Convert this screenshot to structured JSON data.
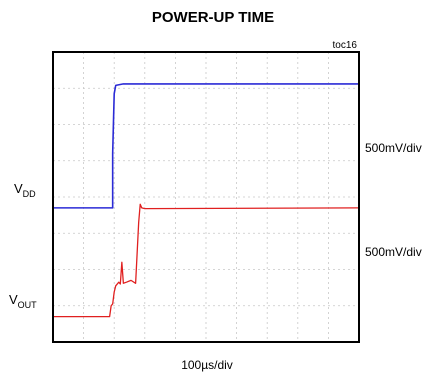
{
  "chart_data": {
    "type": "line",
    "title": "POWER-UP TIME",
    "tag": "toc16",
    "xlabel": "100µs/div",
    "x_scale_label": "100µs/div",
    "xlim": [
      0,
      10
    ],
    "ylim": [
      0,
      8
    ],
    "grid": true,
    "axes_labels_hidden": true,
    "series": [
      {
        "name": "VDD",
        "label_main": "V",
        "label_sub": "DD",
        "scale": "500mV/div",
        "color": "#2b2bd6",
        "points": [
          [
            0,
            3.7
          ],
          [
            1.95,
            3.7
          ],
          [
            1.95,
            5.2
          ],
          [
            2.0,
            6.85
          ],
          [
            2.05,
            7.08
          ],
          [
            2.3,
            7.12
          ],
          [
            10,
            7.12
          ]
        ]
      },
      {
        "name": "VOUT",
        "label_main": "V",
        "label_sub": "OUT",
        "scale": "500mV/div",
        "color": "#e02020",
        "points": [
          [
            0,
            0.7
          ],
          [
            1.85,
            0.7
          ],
          [
            1.9,
            1.0
          ],
          [
            1.95,
            1.05
          ],
          [
            2.0,
            1.38
          ],
          [
            2.05,
            1.55
          ],
          [
            2.15,
            1.65
          ],
          [
            2.2,
            1.6
          ],
          [
            2.25,
            2.2
          ],
          [
            2.3,
            1.62
          ],
          [
            2.4,
            1.65
          ],
          [
            2.55,
            1.7
          ],
          [
            2.7,
            1.62
          ],
          [
            2.8,
            3.3
          ],
          [
            2.85,
            3.8
          ],
          [
            2.9,
            3.7
          ],
          [
            3.0,
            3.68
          ],
          [
            10,
            3.7
          ]
        ]
      }
    ]
  }
}
